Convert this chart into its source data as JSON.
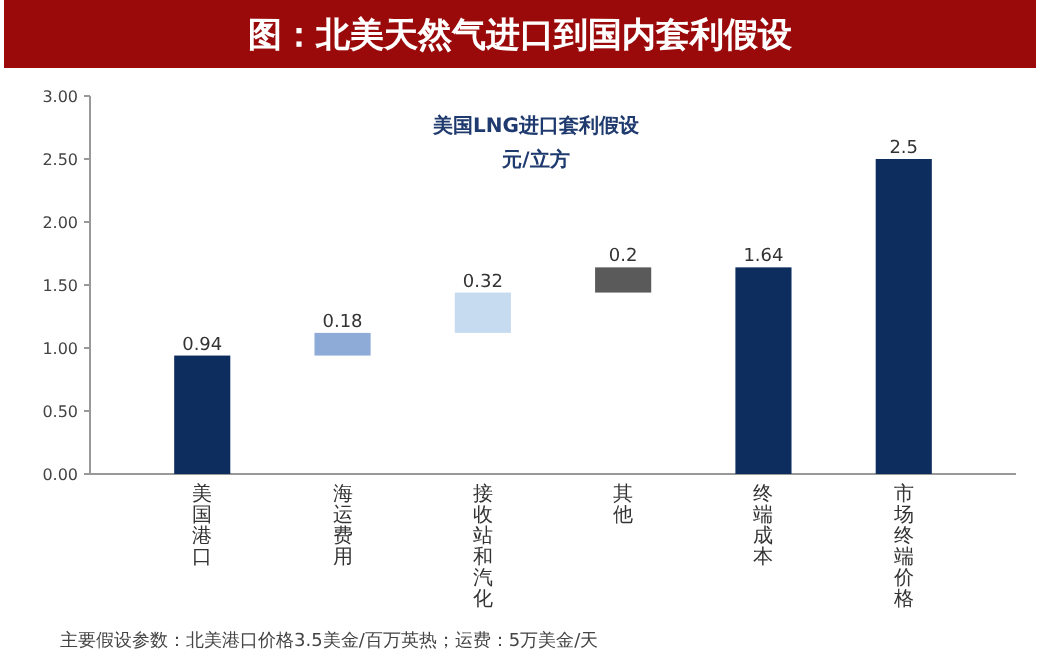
{
  "chart_data": {
    "type": "bar",
    "title": "图：北美天然气进口到国内套利假设",
    "subtitle": "美国LNG进口套利假设",
    "ylabel": "元/立方",
    "categories": [
      "美国港口",
      "海运费用",
      "接收站和汽化",
      "其他",
      "终端成本",
      "市场终端价格"
    ],
    "values": [
      0.94,
      0.18,
      0.32,
      0.2,
      1.64,
      2.5
    ],
    "base": [
      0,
      0.94,
      1.12,
      1.44,
      0,
      0
    ],
    "colors": [
      "#0d2d5e",
      "#8eaad6",
      "#c6daf0",
      "#5a5a5a",
      "#0d2d5e",
      "#0d2d5e"
    ],
    "ylim": [
      0,
      3
    ],
    "yticks": [
      {
        "value": 0,
        "label": "0.00"
      },
      {
        "value": 0.5,
        "label": "0.50"
      },
      {
        "value": 1,
        "label": "1.00"
      },
      {
        "value": 1.5,
        "label": "1.50"
      },
      {
        "value": 2,
        "label": "2.00"
      },
      {
        "value": 2.5,
        "label": "2.50"
      },
      {
        "value": 3,
        "label": "3.00"
      }
    ],
    "data_labels": true,
    "grid": false,
    "annotations": [
      "主要假设参数：北美港口价格3.5美金/百万英热；运费：5万美金/天"
    ]
  }
}
